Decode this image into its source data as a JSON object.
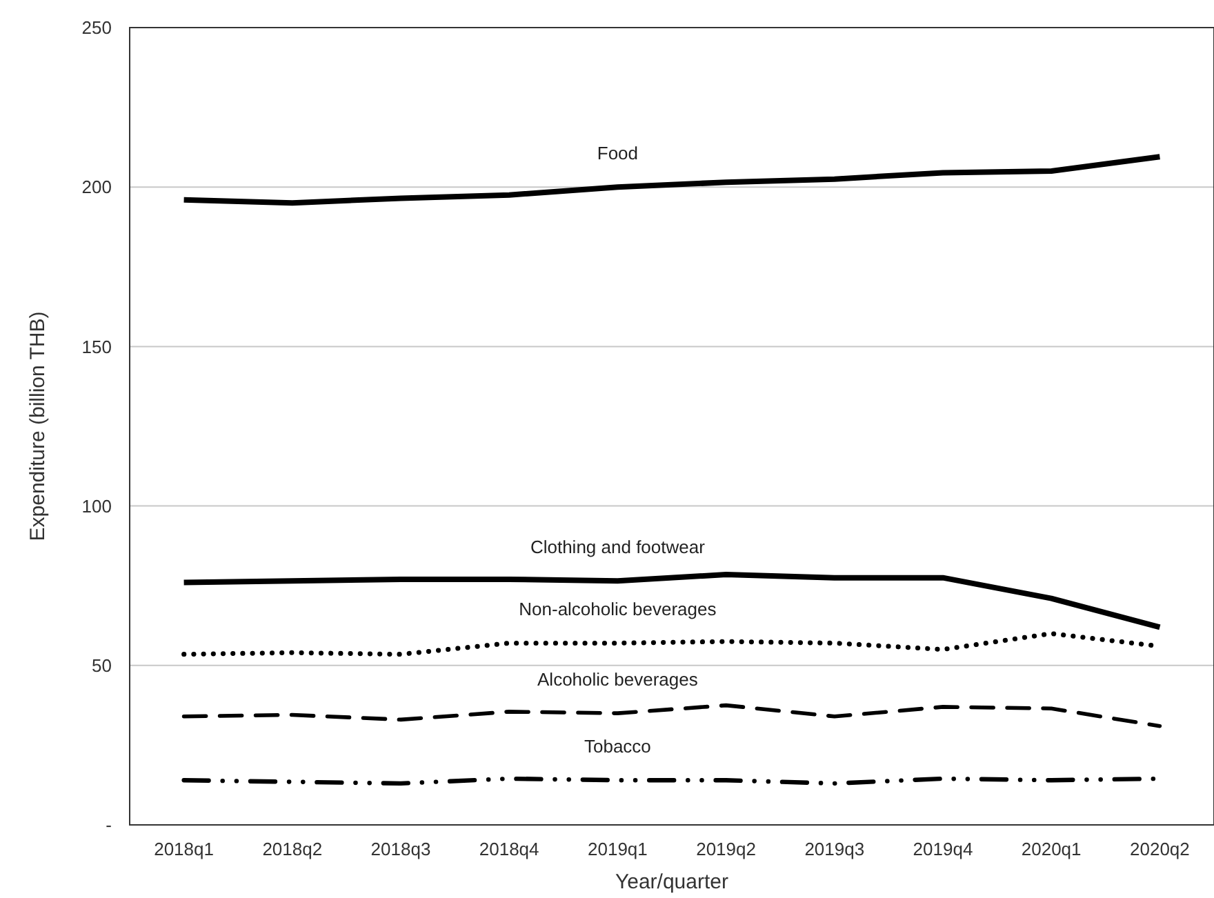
{
  "chart_data": {
    "type": "line",
    "xlabel": "Year/quarter",
    "ylabel": "Expenditure (billion THB)",
    "categories": [
      "2018q1",
      "2018q2",
      "2018q3",
      "2018q4",
      "2019q1",
      "2019q2",
      "2019q3",
      "2019q4",
      "2020q1",
      "2020q2"
    ],
    "ylim": [
      0,
      250
    ],
    "yticks": [
      {
        "value": 0,
        "label": "-"
      },
      50,
      100,
      150,
      200,
      250
    ],
    "grid": "y",
    "series": [
      {
        "name": "Food",
        "color": "#000000",
        "line_style": "solid",
        "values": [
          196,
          195,
          196.5,
          197.5,
          200,
          201.5,
          202.5,
          204.5,
          205,
          209.5
        ]
      },
      {
        "name": "Clothing and footwear",
        "color": "#000000",
        "line_style": "solid",
        "values": [
          76,
          76.5,
          77,
          77,
          76.5,
          78.5,
          77.5,
          77.5,
          71,
          62
        ]
      },
      {
        "name": "Non-alcoholic beverages",
        "color": "#000000",
        "line_style": "dotted",
        "values": [
          53.5,
          54,
          53.5,
          57,
          57,
          57.5,
          57,
          55,
          60,
          56
        ]
      },
      {
        "name": "Alcoholic beverages",
        "color": "#000000",
        "line_style": "dashed",
        "values": [
          34,
          34.5,
          33,
          35.5,
          35,
          37.5,
          34,
          37,
          36.5,
          31
        ]
      },
      {
        "name": "Tobacco",
        "color": "#000000",
        "line_style": "dashdotdot",
        "values": [
          14,
          13.5,
          13,
          14.5,
          14,
          14,
          13,
          14.5,
          14,
          14.5
        ]
      }
    ]
  }
}
